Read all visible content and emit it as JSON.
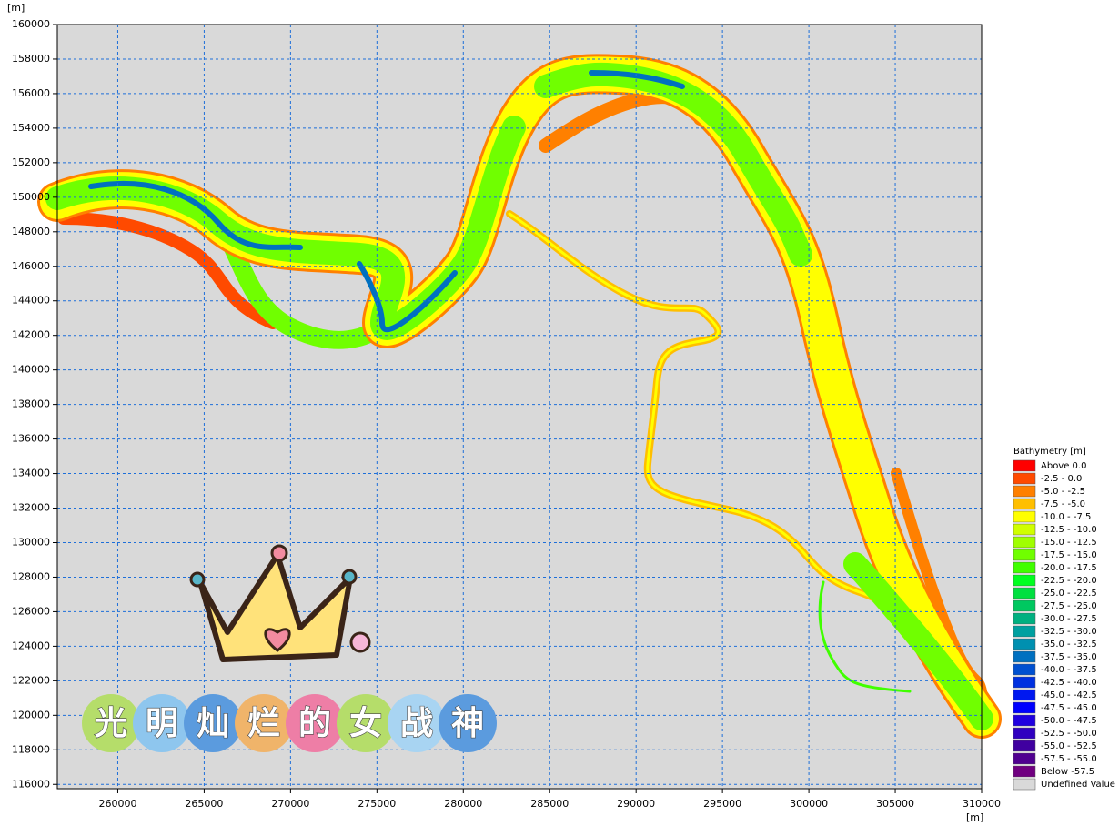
{
  "chart_data": {
    "type": "map",
    "x_unit": "[m]",
    "y_unit": "[m]",
    "xlim": [
      256500,
      310000
    ],
    "ylim": [
      115750,
      160000
    ],
    "xticks": [
      260000,
      265000,
      270000,
      275000,
      280000,
      285000,
      290000,
      295000,
      300000,
      305000,
      310000
    ],
    "yticks": [
      116000,
      118000,
      120000,
      122000,
      124000,
      126000,
      128000,
      130000,
      132000,
      134000,
      136000,
      138000,
      140000,
      142000,
      144000,
      146000,
      148000,
      150000,
      152000,
      154000,
      156000,
      158000,
      160000
    ],
    "grid": true,
    "background": "#d9d9d9",
    "legend": {
      "title": "Bathymetry [m]",
      "position": "right",
      "entries": [
        {
          "label": "Above 0.0",
          "color": "#ff0000"
        },
        {
          "label": "-2.5 - 0.0",
          "color": "#ff4a00"
        },
        {
          "label": "-5.0 - -2.5",
          "color": "#ff8000"
        },
        {
          "label": "-7.5 - -5.0",
          "color": "#ffbf00"
        },
        {
          "label": "-10.0 - -7.5",
          "color": "#ffff00"
        },
        {
          "label": "-12.5 - -10.0",
          "color": "#d0ff00"
        },
        {
          "label": "-15.0 - -12.5",
          "color": "#a0ff00"
        },
        {
          "label": "-17.5 - -15.0",
          "color": "#70ff00"
        },
        {
          "label": "-20.0 - -17.5",
          "color": "#40ff00"
        },
        {
          "label": "-22.5 - -20.0",
          "color": "#00ff20"
        },
        {
          "label": "-25.0 - -22.5",
          "color": "#00e040"
        },
        {
          "label": "-27.5 - -25.0",
          "color": "#00c860"
        },
        {
          "label": "-30.0 - -27.5",
          "color": "#00b080"
        },
        {
          "label": "-32.5 - -30.0",
          "color": "#00a0a0"
        },
        {
          "label": "-35.0 - -32.5",
          "color": "#0090b0"
        },
        {
          "label": "-37.5 - -35.0",
          "color": "#0070c0"
        },
        {
          "label": "-40.0 - -37.5",
          "color": "#0050d0"
        },
        {
          "label": "-42.5 - -40.0",
          "color": "#0030e0"
        },
        {
          "label": "-45.0 - -42.5",
          "color": "#0018f0"
        },
        {
          "label": "-47.5 - -45.0",
          "color": "#0000ff"
        },
        {
          "label": "-50.0 - -47.5",
          "color": "#2000e0"
        },
        {
          "label": "-52.5 - -50.0",
          "color": "#3000c0"
        },
        {
          "label": "-55.0 - -52.5",
          "color": "#4000a0"
        },
        {
          "label": "-57.5 - -55.0",
          "color": "#500090"
        },
        {
          "label": "Below -57.5",
          "color": "#700080"
        },
        {
          "label": "Undefined Value",
          "color": "#d9d9d9"
        }
      ]
    }
  },
  "sticker_text": "光明灿烂的女战神"
}
